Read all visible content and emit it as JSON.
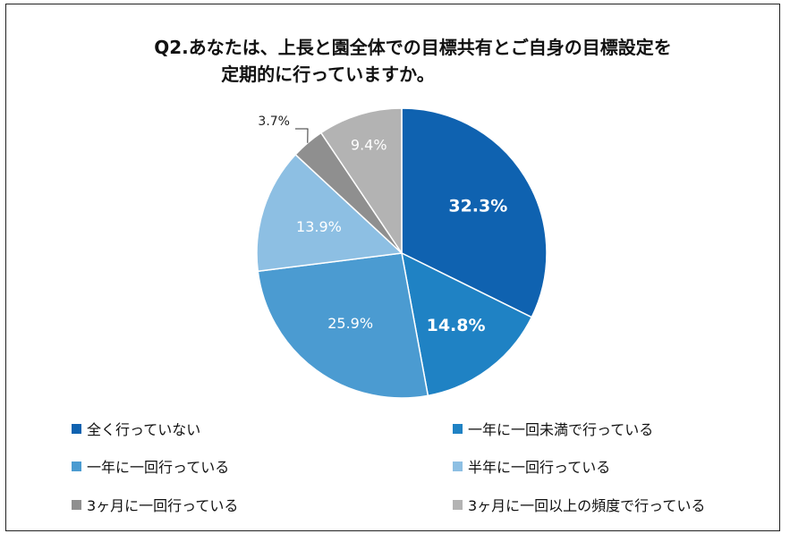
{
  "chart_data": {
    "type": "pie",
    "title": "Q2.あなたは、上長と園全体での目標共有とご自身の目標設定を 定期的に行っていますか。",
    "title_lines": [
      "Q2.あなたは、上長と園全体での目標共有とご自身の目標設定を",
      "定期的に行っていますか。"
    ],
    "legend_placement": "bottom",
    "slices": [
      {
        "label": "全く行っていない",
        "value": 32.3,
        "value_label": "32.3%",
        "color": "#0f62b0"
      },
      {
        "label": "一年に一回未満で行っている",
        "value": 14.8,
        "value_label": "14.8%",
        "color": "#1f82c4"
      },
      {
        "label": "一年に一回行っている",
        "value": 25.9,
        "value_label": "25.9%",
        "color": "#4b9bd1"
      },
      {
        "label": "半年に一回行っている",
        "value": 13.9,
        "value_label": "13.9%",
        "color": "#8dbfe3"
      },
      {
        "label": "3ヶ月に一回行っている",
        "value": 3.7,
        "value_label": "3.7%",
        "color": "#8f8f8f"
      },
      {
        "label": "3ヶ月に一回以上の頻度で行っている",
        "value": 9.4,
        "value_label": "9.4%",
        "color": "#b3b3b3"
      }
    ]
  }
}
